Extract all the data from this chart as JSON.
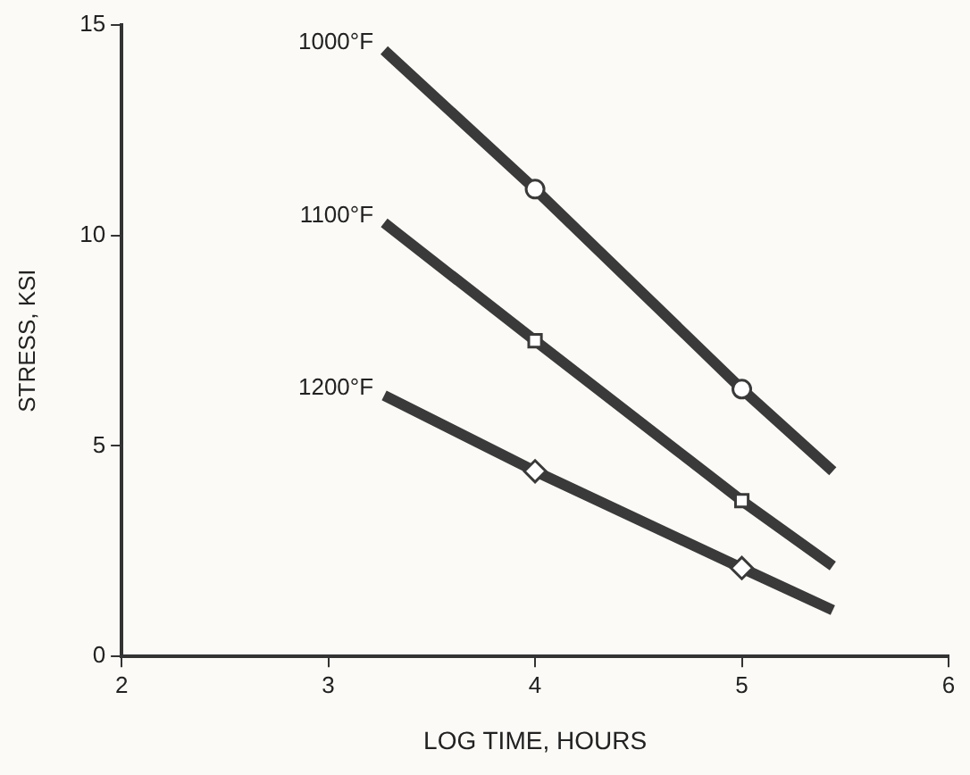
{
  "chart_data": {
    "type": "line",
    "xlabel": "LOG TIME, HOURS",
    "ylabel": "STRESS, KSI",
    "xlim": [
      2,
      6
    ],
    "xticks": [
      2,
      3,
      4,
      5,
      6
    ],
    "ylim": [
      0,
      15
    ],
    "yticks": [
      0,
      5,
      10,
      15
    ],
    "grid": false,
    "legend": false,
    "marker": "none",
    "line_style": "solid",
    "series": [
      {
        "name": "1000°F",
        "color": "#3a3a3a",
        "x": [
          3.27,
          4,
          5,
          5.44
        ],
        "values": [
          14.4,
          11.1,
          6.35,
          4.4
        ]
      },
      {
        "name": "1100°F",
        "color": "#3a3a3a",
        "x": [
          3.27,
          4,
          5,
          5.44
        ],
        "values": [
          10.3,
          7.5,
          3.7,
          2.15
        ]
      },
      {
        "name": "1200°F",
        "color": "#3a3a3a",
        "x": [
          3.27,
          4,
          5,
          5.44
        ],
        "values": [
          6.2,
          4.4,
          2.1,
          1.1
        ]
      },
      {
        "type": "scatter",
        "marker": "circle",
        "color": "#3a3a3a",
        "x": [
          4,
          5
        ],
        "values": [
          11.1,
          6.35
        ]
      },
      {
        "type": "scatter",
        "marker": "square",
        "color": "#3a3a3a",
        "x": [
          4,
          5
        ],
        "values": [
          7.5,
          3.7
        ]
      },
      {
        "type": "scatter",
        "marker": "diamond",
        "color": "#3a3a3a",
        "x": [
          4,
          5
        ],
        "values": [
          4.4,
          2.1
        ]
      }
    ]
  }
}
